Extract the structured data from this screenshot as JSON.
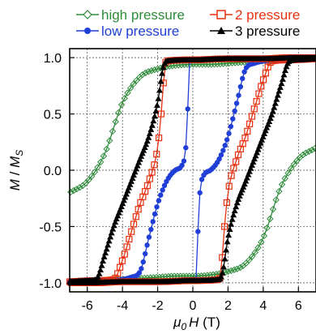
{
  "chart_data": {
    "type": "line",
    "title": "",
    "xlabel_parts": {
      "mu": "μ",
      "sub": "0",
      "var": "H",
      "unit": " (T)"
    },
    "ylabel_parts": {
      "num": "M",
      "slash": " / ",
      "den": "M",
      "sub": "S"
    },
    "xlim": [
      -7,
      7
    ],
    "ylim": [
      -1.08,
      1.08
    ],
    "xticks": [
      -6,
      -4,
      -2,
      0,
      2,
      4,
      6
    ],
    "yticks": [
      -1.0,
      -0.5,
      0.0,
      0.5,
      1.0
    ],
    "xtick_labels": [
      "-6",
      "-4",
      "-2",
      "0",
      "2",
      "4",
      "6"
    ],
    "ytick_labels": [
      "-1.0",
      "-0.5",
      "0.0",
      "0.5",
      "1.0"
    ],
    "grid": true,
    "legend_position": "top",
    "series": [
      {
        "name": "high pressure",
        "color": "#2e8b3a",
        "marker": "diamond-open",
        "branch_down": {
          "x": [
            7,
            5.5,
            4,
            3,
            2,
            1,
            0,
            -1,
            -2,
            -3,
            -4,
            -5,
            -6,
            -7
          ],
          "y": [
            0.99,
            0.98,
            0.97,
            0.96,
            0.95,
            0.94,
            0.94,
            0.93,
            0.9,
            0.83,
            0.6,
            0.15,
            -0.1,
            -0.2
          ]
        },
        "branch_up": {
          "x": [
            -7,
            -5.5,
            -4,
            -3,
            -2,
            -1,
            0,
            1,
            2,
            3,
            4,
            5,
            6,
            7
          ],
          "y": [
            -0.99,
            -0.98,
            -0.97,
            -0.96,
            -0.95,
            -0.94,
            -0.94,
            -0.93,
            -0.9,
            -0.83,
            -0.6,
            -0.15,
            0.1,
            0.2
          ]
        }
      },
      {
        "name": "low pressure",
        "color": "#1f3fd6",
        "marker": "circle-filled",
        "branch_down": {
          "x": [
            7,
            5,
            4,
            3.5,
            3,
            2.5,
            2,
            1.5,
            1,
            0.6,
            0.4,
            0.3,
            0.2,
            -1,
            -3,
            -5,
            -7
          ],
          "y": [
            0.99,
            0.98,
            0.97,
            0.95,
            0.9,
            0.6,
            0.3,
            0.1,
            0.0,
            -0.05,
            -0.2,
            -0.5,
            -0.97,
            -0.98,
            -0.99,
            -0.99,
            -1.0
          ]
        },
        "branch_up": {
          "x": [
            -7,
            -5,
            -4,
            -3.5,
            -3,
            -2.5,
            -2,
            -1.5,
            -1,
            -0.6,
            -0.4,
            -0.3,
            -0.2,
            1,
            3,
            5,
            7
          ],
          "y": [
            -0.99,
            -0.98,
            -0.97,
            -0.95,
            -0.9,
            -0.6,
            -0.3,
            -0.1,
            0.0,
            0.05,
            0.2,
            0.5,
            0.97,
            0.98,
            0.99,
            0.99,
            1.0
          ]
        }
      },
      {
        "name": "2 pressure",
        "color": "#e83010",
        "marker": "square-open",
        "branch_down": {
          "x": [
            7,
            5.5,
            4.5,
            4,
            3.5,
            3,
            2.5,
            2,
            1.8,
            1.6,
            1.5,
            0,
            -2,
            -4,
            -5.5,
            -7
          ],
          "y": [
            0.99,
            0.98,
            0.97,
            0.8,
            0.55,
            0.3,
            0.1,
            -0.2,
            -0.5,
            -0.9,
            -0.97,
            -0.98,
            -0.99,
            -0.99,
            -1.0,
            -1.0
          ]
        },
        "branch_up": {
          "x": [
            -7,
            -5.5,
            -4.5,
            -4,
            -3.5,
            -3,
            -2.5,
            -2,
            -1.8,
            -1.6,
            -1.5,
            0,
            2,
            4,
            5.5,
            7
          ],
          "y": [
            -0.99,
            -0.98,
            -0.97,
            -0.8,
            -0.55,
            -0.3,
            -0.1,
            0.2,
            0.5,
            0.9,
            0.97,
            0.98,
            0.99,
            0.99,
            1.0,
            1.0
          ]
        }
      },
      {
        "name": "3 pressure",
        "color": "#000000",
        "marker": "triangle-filled",
        "branch_down": {
          "x": [
            7,
            6,
            5.5,
            5,
            4.5,
            4,
            3.5,
            3,
            2.5,
            2,
            1.7,
            1.5,
            0,
            -2,
            -4,
            -6,
            -7
          ],
          "y": [
            0.99,
            0.98,
            0.97,
            0.75,
            0.5,
            0.3,
            0.1,
            -0.1,
            -0.3,
            -0.6,
            -0.9,
            -0.97,
            -0.98,
            -0.99,
            -0.99,
            -1.0,
            -1.0
          ]
        },
        "branch_up": {
          "x": [
            -7,
            -6,
            -5.5,
            -5,
            -4.5,
            -4,
            -3.5,
            -3,
            -2.5,
            -2,
            -1.7,
            -1.5,
            0,
            2,
            4,
            6,
            7
          ],
          "y": [
            -0.99,
            -0.98,
            -0.97,
            -0.75,
            -0.5,
            -0.3,
            -0.1,
            0.1,
            0.3,
            0.6,
            0.9,
            0.97,
            0.98,
            0.99,
            0.99,
            1.0,
            1.0
          ]
        }
      }
    ]
  }
}
